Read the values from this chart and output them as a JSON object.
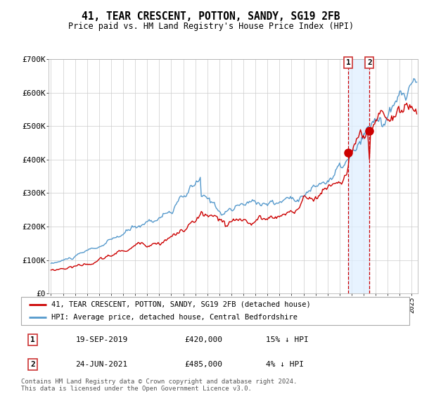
{
  "title": "41, TEAR CRESCENT, POTTON, SANDY, SG19 2FB",
  "subtitle": "Price paid vs. HM Land Registry's House Price Index (HPI)",
  "legend_line1": "41, TEAR CRESCENT, POTTON, SANDY, SG19 2FB (detached house)",
  "legend_line2": "HPI: Average price, detached house, Central Bedfordshire",
  "footnote": "Contains HM Land Registry data © Crown copyright and database right 2024.\nThis data is licensed under the Open Government Licence v3.0.",
  "sale1_label": "1",
  "sale1_date": "19-SEP-2019",
  "sale1_price": "£420,000",
  "sale1_hpi": "15% ↓ HPI",
  "sale2_label": "2",
  "sale2_date": "24-JUN-2021",
  "sale2_price": "£485,000",
  "sale2_hpi": "4% ↓ HPI",
  "red_color": "#cc0000",
  "blue_color": "#5599cc",
  "blue_shade": "#ddeeff",
  "background_color": "#ffffff",
  "grid_color": "#cccccc",
  "sale1_x": 2019.72,
  "sale1_y": 420000,
  "sale2_x": 2021.48,
  "sale2_y": 485000,
  "ylim": [
    0,
    700000
  ],
  "xlim": [
    1994.8,
    2025.5
  ],
  "yticks": [
    0,
    100000,
    200000,
    300000,
    400000,
    500000,
    600000,
    700000
  ],
  "ytick_labels": [
    "£0",
    "£100K",
    "£200K",
    "£300K",
    "£400K",
    "£500K",
    "£600K",
    "£700K"
  ]
}
